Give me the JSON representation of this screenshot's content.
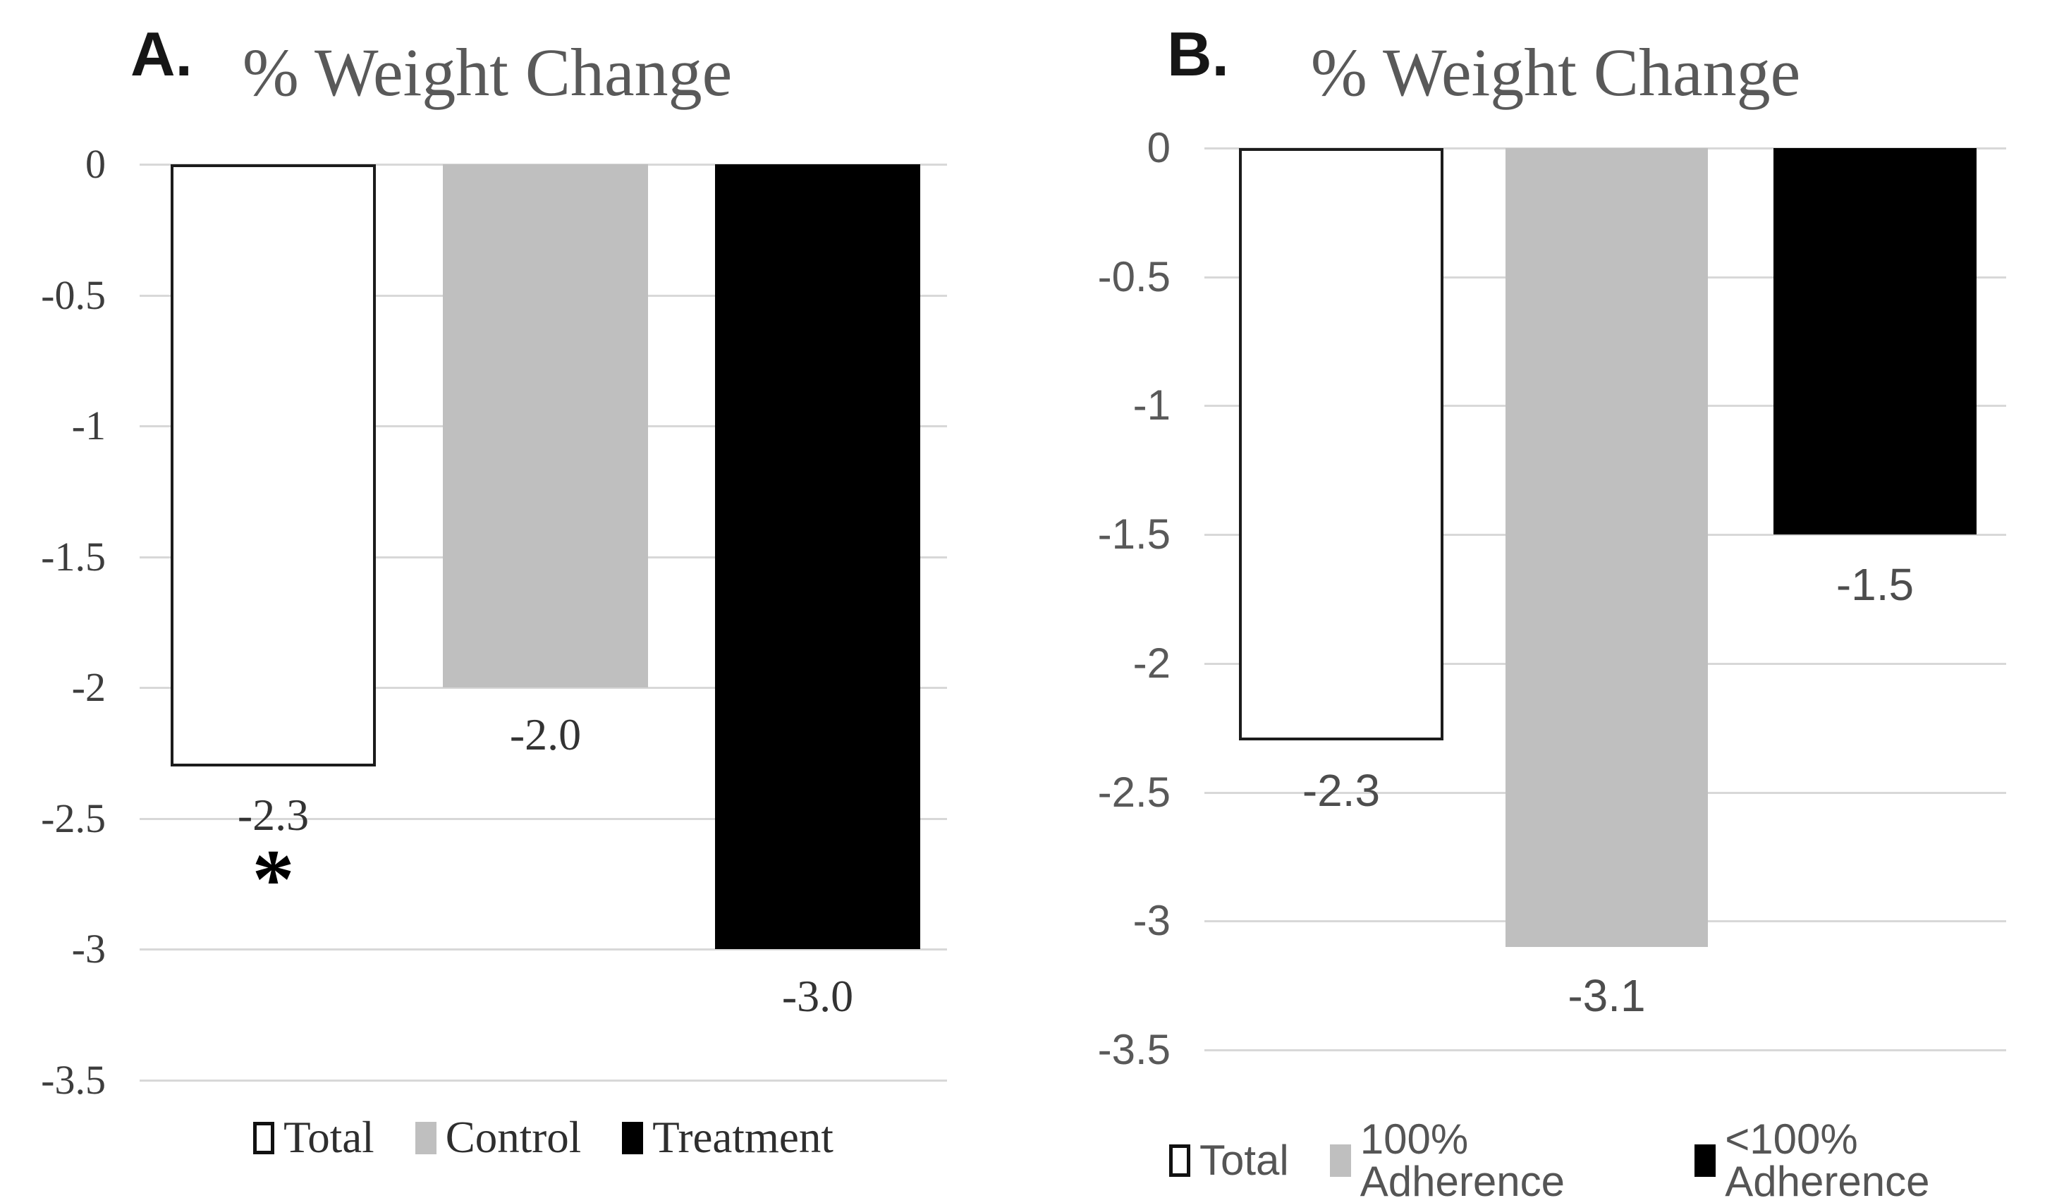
{
  "colors": {
    "bar_white_fill": "#ffffff",
    "bar_white_border": "#1c1c1c",
    "bar_gray": "#bfbfbf",
    "bar_black": "#000000",
    "gridline": "#d8d8d8",
    "title_text": "#595959"
  },
  "chart_data": [
    {
      "type": "bar",
      "panel_label": "A.",
      "title": "% Weight Change",
      "categories": [
        "Total",
        "Control",
        "Treatment"
      ],
      "values": [
        -2.3,
        -2.0,
        -3.0
      ],
      "value_labels": [
        "-2.3",
        "-2.0",
        "-3.0"
      ],
      "annotation": {
        "text": "*",
        "bar_index": 0
      },
      "xlabel": "",
      "ylabel": "",
      "ylim": [
        0,
        -3.5
      ],
      "yticks": [
        "0",
        "-0.5",
        "-1",
        "-1.5",
        "-2",
        "-2.5",
        "-3",
        "-3.5"
      ],
      "grid": "horizontal",
      "legend_position": "bottom",
      "legend": [
        "Total",
        "Control",
        "Treatment"
      ],
      "bar_colors": [
        "#ffffff",
        "#bfbfbf",
        "#000000"
      ]
    },
    {
      "type": "bar",
      "panel_label": "B.",
      "title": "% Weight Change",
      "categories": [
        "Total",
        "100% Adherence",
        "<100% Adherence"
      ],
      "values": [
        -2.3,
        -3.1,
        -1.5
      ],
      "value_labels": [
        "-2.3",
        "-3.1",
        "-1.5"
      ],
      "xlabel": "",
      "ylabel": "",
      "ylim": [
        0,
        -3.5
      ],
      "yticks": [
        "0",
        "-0.5",
        "-1",
        "-1.5",
        "-2",
        "-2.5",
        "-3",
        "-3.5"
      ],
      "grid": "horizontal",
      "legend_position": "bottom",
      "legend": [
        "Total",
        "100% Adherence",
        "<100% Adherence"
      ],
      "bar_colors": [
        "#ffffff",
        "#bfbfbf",
        "#000000"
      ]
    }
  ]
}
